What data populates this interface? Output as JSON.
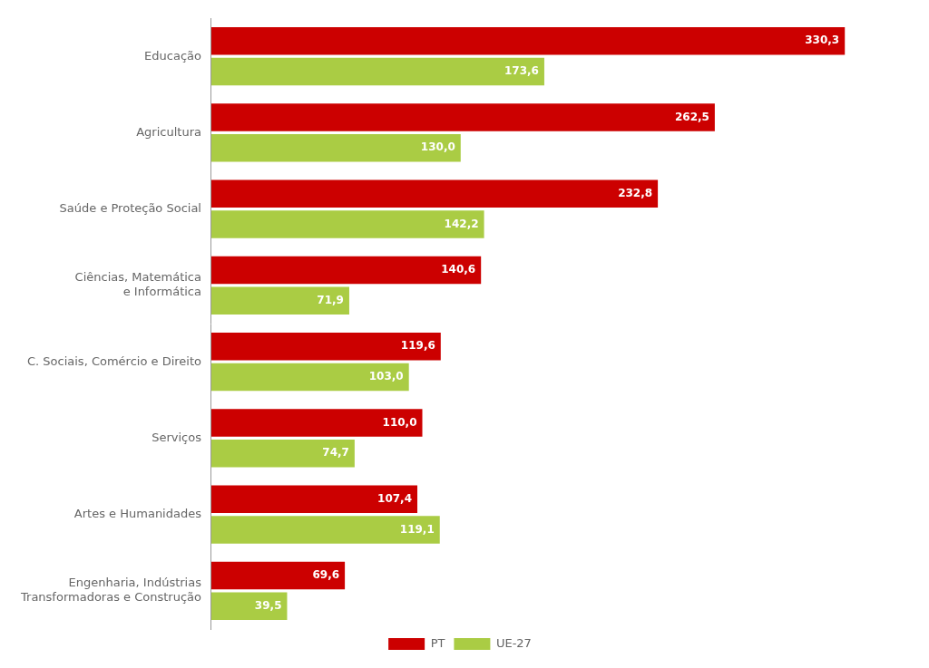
{
  "chart_data": {
    "type": "bar",
    "orientation": "horizontal",
    "categories": [
      "Educação",
      "Agricultura",
      "Saúde e Proteção Social",
      "Ciências, Matemática\ne Informática",
      "C. Sociais, Comércio e Direito",
      "Serviços",
      "Artes e Humanidades",
      "Engenharia, Indústrias\nTransformadoras e Construção"
    ],
    "series": [
      {
        "name": "PT",
        "color": "#CC0000",
        "values": [
          330.3,
          262.5,
          232.8,
          140.6,
          119.6,
          110.0,
          107.4,
          69.6
        ],
        "value_labels": [
          "330,3",
          "262,5",
          "232,8",
          "140,6",
          "119,6",
          "110,0",
          "107,4",
          "69,6"
        ]
      },
      {
        "name": "UE-27",
        "color": "#AACC44",
        "values": [
          173.6,
          130.0,
          142.2,
          71.9,
          103.0,
          74.7,
          119.1,
          39.5
        ],
        "value_labels": [
          "173,6",
          "130,0",
          "142,2",
          "71,9",
          "103,0",
          "74,7",
          "119,1",
          "39,5"
        ]
      }
    ],
    "xlim": [
      0,
      360
    ],
    "grid": false,
    "legend": "bottom",
    "data_labels": true,
    "tick_labels": "y"
  }
}
